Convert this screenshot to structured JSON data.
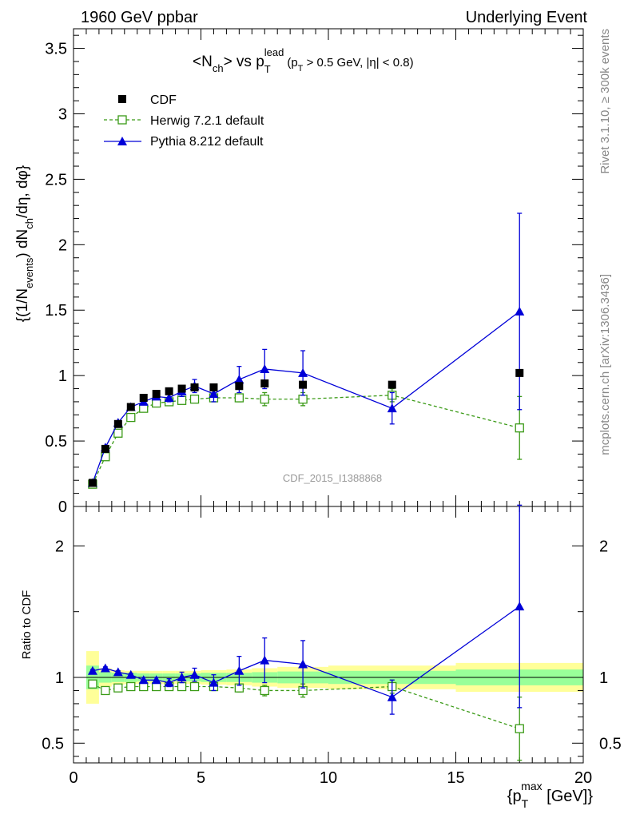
{
  "header": {
    "left": "1960 GeV ppbar",
    "right": "Underlying Event"
  },
  "side_labels": {
    "rivet": "Rivet 3.1.10, ≥ 300k events",
    "mcplots": "mcplots.cern.ch [arXiv:1306.3436]"
  },
  "colors": {
    "cdf": "#000000",
    "herwig": "#3a9a16",
    "pythia": "#0000d8",
    "band_inner": "#99ff99",
    "band_outer": "#ffff99"
  },
  "chart_data": [
    {
      "type": "scatter",
      "panel": "main",
      "title": "<N_ch> vs p_T^lead (p_T > 0.5 GeV, |η| < 0.8)",
      "title_parts": {
        "lhs": "<N",
        "lhs_sub": "ch",
        "mid": "> vs p",
        "mid_sub": "T",
        "mid_sup": "lead",
        "cuts": "(p",
        "cuts_sub": "T",
        "cuts_rest": " > 0.5 GeV, |η| < 0.8)"
      },
      "ylabel_parts": [
        "{(1/N",
        "events",
        ") dN",
        "ch",
        "/dη, dφ}"
      ],
      "watermark": "CDF_2015_I1388868",
      "xlim": [
        0,
        20
      ],
      "ylim": [
        0,
        3.65
      ],
      "yticks": [
        0,
        0.5,
        1,
        1.5,
        2,
        2.5,
        3,
        3.5
      ],
      "ytick_labels": [
        "0",
        "0.5",
        "1",
        "1.5",
        "2",
        "2.5",
        "3",
        "3.5"
      ],
      "legend_position": "top-left",
      "x": [
        0.75,
        1.25,
        1.75,
        2.25,
        2.75,
        3.25,
        3.75,
        4.25,
        4.75,
        5.5,
        6.5,
        7.5,
        9.0,
        12.5,
        17.5
      ],
      "series": [
        {
          "name": "CDF",
          "marker": "filled-square",
          "values": [
            0.18,
            0.44,
            0.63,
            0.76,
            0.83,
            0.86,
            0.88,
            0.9,
            0.91,
            0.91,
            0.92,
            0.94,
            0.93,
            0.93,
            1.02
          ],
          "errors": [
            0.0,
            0.0,
            0.0,
            0.0,
            0.0,
            0.0,
            0.0,
            0.0,
            0.0,
            0.0,
            0.0,
            0.0,
            0.0,
            0.0,
            0.0
          ]
        },
        {
          "name": "Herwig 7.2.1 default",
          "marker": "open-square",
          "line": "dashed",
          "values": [
            0.17,
            0.38,
            0.56,
            0.68,
            0.75,
            0.79,
            0.8,
            0.81,
            0.82,
            0.83,
            0.83,
            0.82,
            0.82,
            0.85,
            0.6
          ],
          "errors": [
            0.005,
            0.01,
            0.01,
            0.01,
            0.01,
            0.01,
            0.01,
            0.01,
            0.01,
            0.01,
            0.03,
            0.05,
            0.05,
            0.05,
            0.24
          ]
        },
        {
          "name": "Pythia 8.212 default",
          "marker": "filled-triangle",
          "line": "solid",
          "values": [
            0.18,
            0.45,
            0.64,
            0.76,
            0.8,
            0.84,
            0.83,
            0.88,
            0.92,
            0.86,
            0.97,
            1.05,
            1.02,
            0.75,
            1.49
          ],
          "errors": [
            0.005,
            0.01,
            0.01,
            0.01,
            0.02,
            0.02,
            0.03,
            0.04,
            0.05,
            0.06,
            0.1,
            0.15,
            0.17,
            0.12,
            0.75
          ]
        }
      ]
    },
    {
      "type": "scatter",
      "panel": "ratio",
      "ylabel": "Ratio to CDF",
      "xlabel_parts": [
        "{p",
        "T",
        "max",
        " [GeV]}"
      ],
      "xlim": [
        0,
        20
      ],
      "ylim": [
        0.35,
        2.3
      ],
      "xticks": [
        0,
        5,
        10,
        15,
        20
      ],
      "xtick_labels": [
        "0",
        "5",
        "10",
        "15",
        "20"
      ],
      "yticks": [
        0.5,
        1,
        2
      ],
      "ytick_labels": [
        "0.5",
        "1",
        "2"
      ],
      "reference": 1.0,
      "band_edges": [
        0.5,
        1.0,
        1.5,
        2.0,
        2.5,
        3.0,
        3.5,
        4.0,
        4.5,
        5.0,
        6.0,
        7.0,
        8.0,
        10.0,
        15.0,
        20.0
      ],
      "band_inner": [
        0.09,
        0.04,
        0.035,
        0.035,
        0.03,
        0.03,
        0.03,
        0.03,
        0.03,
        0.035,
        0.035,
        0.04,
        0.045,
        0.05,
        0.06
      ],
      "band_outer": [
        0.2,
        0.07,
        0.055,
        0.05,
        0.05,
        0.05,
        0.05,
        0.05,
        0.05,
        0.055,
        0.06,
        0.07,
        0.08,
        0.09,
        0.11
      ],
      "x": [
        0.75,
        1.25,
        1.75,
        2.25,
        2.75,
        3.25,
        3.75,
        4.25,
        4.75,
        5.5,
        6.5,
        7.5,
        9.0,
        12.5,
        17.5
      ],
      "series": [
        {
          "name": "Herwig 7.2.1 default",
          "values": [
            0.95,
            0.9,
            0.92,
            0.93,
            0.93,
            0.93,
            0.93,
            0.93,
            0.93,
            0.93,
            0.92,
            0.9,
            0.9,
            0.93,
            0.61
          ],
          "errors": [
            0.01,
            0.01,
            0.01,
            0.01,
            0.01,
            0.01,
            0.01,
            0.01,
            0.01,
            0.01,
            0.03,
            0.04,
            0.05,
            0.05,
            0.24
          ]
        },
        {
          "name": "Pythia 8.212 default",
          "values": [
            1.05,
            1.07,
            1.04,
            1.02,
            0.98,
            0.98,
            0.96,
            1.0,
            1.02,
            0.96,
            1.05,
            1.13,
            1.1,
            0.85,
            1.54
          ],
          "errors": [
            0.01,
            0.01,
            0.01,
            0.01,
            0.02,
            0.02,
            0.03,
            0.04,
            0.05,
            0.06,
            0.11,
            0.17,
            0.18,
            0.13,
            0.77
          ]
        }
      ]
    }
  ]
}
